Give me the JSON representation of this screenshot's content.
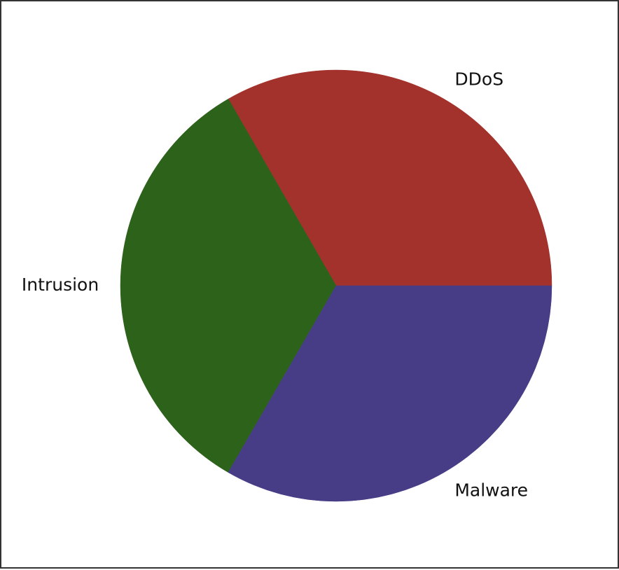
{
  "chart_data": {
    "type": "pie",
    "labels": [
      "DDoS",
      "Intrusion",
      "Malware"
    ],
    "values": [
      33.33,
      33.33,
      33.34
    ],
    "colors": [
      "#a3312c",
      "#2d621b",
      "#473d86"
    ],
    "start_angle_deg": 0,
    "direction": "counterclockwise",
    "legend": "none",
    "title": ""
  }
}
